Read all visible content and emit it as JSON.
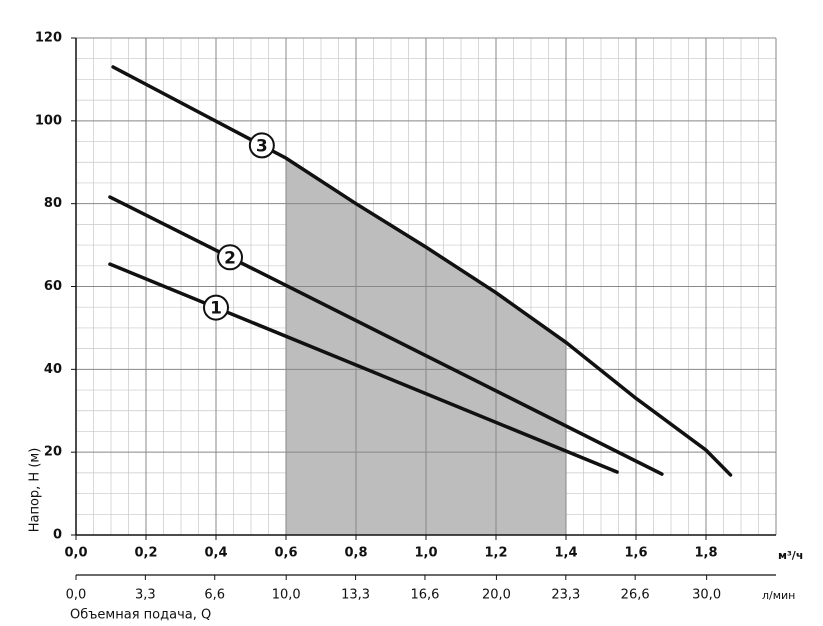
{
  "chart_data": {
    "type": "line",
    "y_label": "Напор, Н (м)",
    "x_label": "Объемная подача, Q",
    "x_unit": "м³/ч",
    "x2_unit": "л/мин",
    "xlim": [
      0,
      2.0
    ],
    "ylim": [
      0,
      120
    ],
    "xticks": [
      {
        "value": 0.0,
        "label": "0,0"
      },
      {
        "value": 0.2,
        "label": "0,2"
      },
      {
        "value": 0.4,
        "label": "0,4"
      },
      {
        "value": 0.6,
        "label": "0,6"
      },
      {
        "value": 0.8,
        "label": "0,8"
      },
      {
        "value": 1.0,
        "label": "1,0"
      },
      {
        "value": 1.2,
        "label": "1,2"
      },
      {
        "value": 1.4,
        "label": "1,4"
      },
      {
        "value": 1.6,
        "label": "1,6"
      },
      {
        "value": 1.8,
        "label": "1,8"
      }
    ],
    "yticks": [
      0,
      20,
      40,
      60,
      80,
      100,
      120
    ],
    "x2lim": [
      0,
      33.3
    ],
    "x2ticks": [
      {
        "value": 0.0,
        "label": "0,0"
      },
      {
        "value": 3.3,
        "label": "3,3"
      },
      {
        "value": 6.6,
        "label": "6,6"
      },
      {
        "value": 10.0,
        "label": "10,0"
      },
      {
        "value": 13.3,
        "label": "13,3"
      },
      {
        "value": 16.6,
        "label": "16,6"
      },
      {
        "value": 20.0,
        "label": "20,0"
      },
      {
        "value": 23.3,
        "label": "23,3"
      },
      {
        "value": 26.6,
        "label": "26,6"
      },
      {
        "value": 30.0,
        "label": "30,0"
      }
    ],
    "grid": true,
    "shaded_range": [
      0.6,
      1.4
    ],
    "shade_color": "#bdbdbd",
    "series": [
      {
        "name": "1",
        "color": "#111111",
        "x": [
          0.097,
          1.546
        ],
        "values": [
          65.4,
          15.2
        ]
      },
      {
        "name": "2",
        "color": "#111111",
        "x": [
          0.097,
          1.674
        ],
        "values": [
          81.6,
          14.7
        ]
      },
      {
        "name": "3",
        "color": "#111111",
        "x": [
          0.106,
          0.6,
          0.8,
          1.0,
          1.2,
          1.4,
          1.6,
          1.8,
          1.87
        ],
        "values": [
          113,
          91,
          80,
          69.5,
          58.5,
          46.5,
          33,
          20.5,
          14.5
        ]
      }
    ]
  }
}
